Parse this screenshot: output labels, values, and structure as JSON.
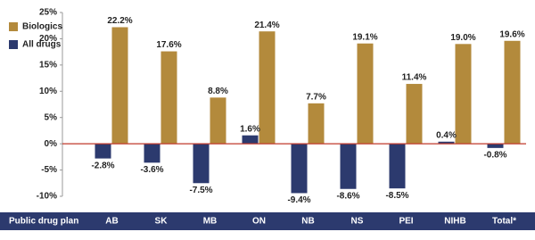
{
  "chart_data": {
    "type": "bar",
    "x_label": "Public drug plan",
    "categories": [
      "AB",
      "SK",
      "MB",
      "ON",
      "NB",
      "NS",
      "PEI",
      "NIHB",
      "Total*"
    ],
    "series": [
      {
        "name": "Biologics",
        "color": "#b38a3c",
        "values": [
          22.2,
          17.6,
          8.8,
          21.4,
          7.7,
          19.1,
          11.4,
          19.0,
          19.6
        ],
        "value_labels": [
          "22.2%",
          "17.6%",
          "8.8%",
          "21.4%",
          "7.7%",
          "19.1%",
          "11.4%",
          "19.0%",
          "19.6%"
        ]
      },
      {
        "name": "All drugs",
        "color": "#2c3a6e",
        "values": [
          -2.8,
          -3.6,
          -7.5,
          1.6,
          -9.4,
          -8.6,
          -8.5,
          0.4,
          -0.8
        ],
        "value_labels": [
          "-2.8%",
          "-3.6%",
          "-7.5%",
          "1.6%",
          "-9.4%",
          "-8.6%",
          "-8.5%",
          "0.4%",
          "-0.8%"
        ]
      }
    ],
    "ylim": [
      -10,
      25
    ],
    "yticks": [
      {
        "value": -10,
        "label": "-10%"
      },
      {
        "value": -5,
        "label": "-5%"
      },
      {
        "value": 0,
        "label": "0%"
      },
      {
        "value": 5,
        "label": "5%"
      },
      {
        "value": 10,
        "label": "10%"
      },
      {
        "value": 15,
        "label": "15%"
      },
      {
        "value": 20,
        "label": "20%"
      },
      {
        "value": 25,
        "label": "25%"
      }
    ],
    "legend": "top-left"
  }
}
